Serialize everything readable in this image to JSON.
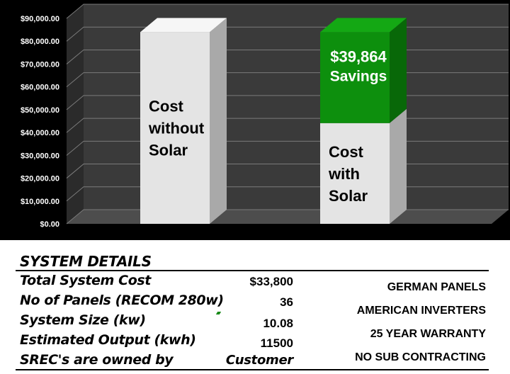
{
  "chart_data": {
    "type": "bar",
    "categories": [
      "Cost without Solar",
      "Cost with Solar"
    ],
    "y_ticks": [
      "$90,000.00",
      "$80,000.00",
      "$70,000.00",
      "$60,000.00",
      "$50,000.00",
      "$40,000.00",
      "$30,000.00",
      "$20,000.00",
      "$10,000.00",
      "$0.00"
    ],
    "ylim": [
      0,
      90000
    ],
    "stacked": true,
    "bars": [
      {
        "segments": [
          {
            "value": 84000,
            "label_lines": [
              "Cost",
              "without",
              "Solar"
            ],
            "color": "#e4e4e4"
          }
        ]
      },
      {
        "segments": [
          {
            "value": 44136,
            "label_lines": [
              "Cost",
              "with",
              "Solar"
            ],
            "color": "#e4e4e4"
          },
          {
            "value": 39864,
            "label_lines": [
              "$39,864",
              "Savings"
            ],
            "color": "#0d8f0d"
          }
        ]
      }
    ],
    "grid": true,
    "background": "#000000"
  },
  "details": {
    "title": "SYSTEM DETAILS",
    "rows": [
      {
        "label": "Total System Cost",
        "value": "$33,800"
      },
      {
        "label": "No of Panels (RECOM 280w)",
        "value": "36"
      },
      {
        "label": "System Size (kw)",
        "value": "10.08"
      },
      {
        "label": "Estimated Output   (kwh)",
        "value": "11500"
      },
      {
        "label": "SREC's are owned by",
        "value": "Customer"
      }
    ],
    "features": [
      "GERMAN PANELS",
      "AMERICAN INVERTERS",
      "25 YEAR WARRANTY",
      "NO SUB CONTRACTING"
    ]
  }
}
